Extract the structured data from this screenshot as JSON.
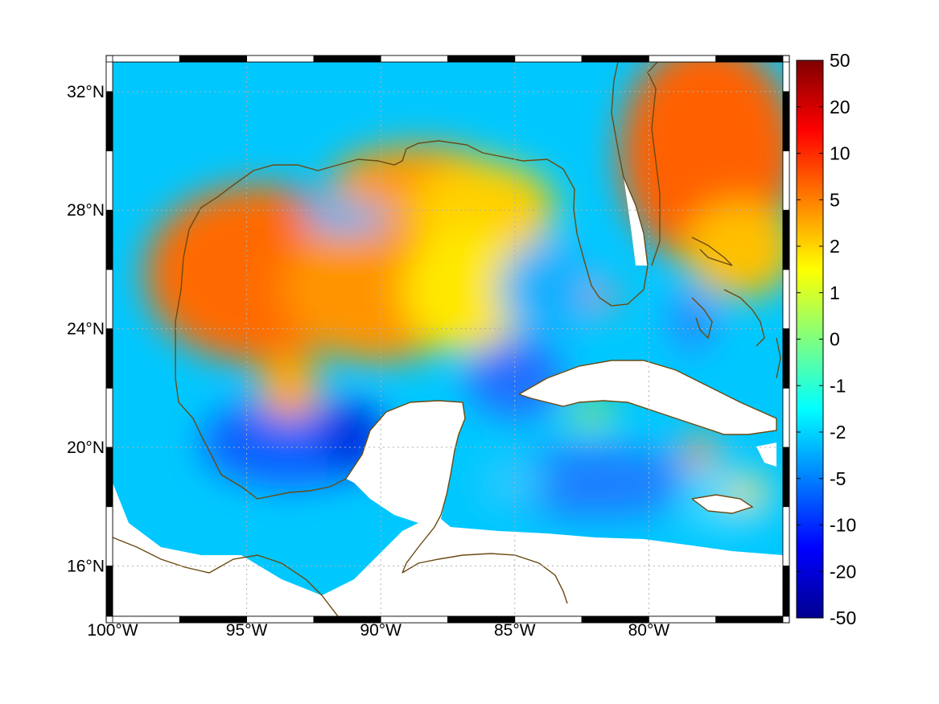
{
  "map": {
    "lon_ticks": [
      {
        "lon": -100,
        "label": "100°W"
      },
      {
        "lon": -95,
        "label": "95°W"
      },
      {
        "lon": -90,
        "label": "90°W"
      },
      {
        "lon": -85,
        "label": "85°W"
      },
      {
        "lon": -80,
        "label": "80°W"
      }
    ],
    "lat_ticks": [
      {
        "lat": 32,
        "label": "32°N"
      },
      {
        "lat": 28,
        "label": "28°N"
      },
      {
        "lat": 24,
        "label": "24°N"
      },
      {
        "lat": 20,
        "label": "20°N"
      },
      {
        "lat": 16,
        "label": "16°N"
      }
    ],
    "lon_range": [
      -100,
      -75
    ],
    "lat_range": [
      14.3,
      33
    ],
    "grid": true,
    "coastline_color": "#6b4a12",
    "land_color": "#ffffff"
  },
  "colorbar": {
    "colormap": "jet",
    "ticks": [
      "50",
      "20",
      "10",
      "5",
      "2",
      "1",
      "0",
      "-1",
      "-2",
      "-5",
      "-10",
      "-20",
      "-50"
    ],
    "stops": [
      "#800000",
      "#ff0000",
      "#ffff00",
      "#00ffff",
      "#0000ff",
      "#00008f"
    ]
  }
}
